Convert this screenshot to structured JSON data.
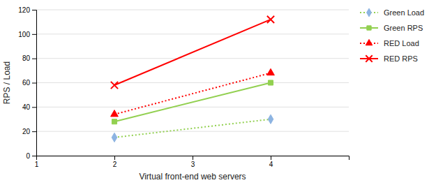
{
  "chart_data": {
    "type": "line",
    "x": [
      2,
      4
    ],
    "xlabel": "Virtual front-end web servers",
    "ylabel": "RPS / Load",
    "xlim": [
      1,
      5
    ],
    "ylim": [
      0,
      120
    ],
    "xticks": [
      1,
      2,
      3,
      4
    ],
    "yticks": [
      0,
      20,
      40,
      60,
      80,
      100,
      120
    ],
    "grid": true,
    "legend": "right",
    "series": [
      {
        "name": "Green Load",
        "color": "#92D050",
        "colors": [
          "#8DB4E2",
          "#8DB4E2"
        ],
        "marker": "diamond",
        "line_style": "dotted",
        "values": [
          15,
          30
        ]
      },
      {
        "name": "Green RPS",
        "color": "#92D050",
        "marker": "square",
        "line_style": "solid",
        "values": [
          28,
          60
        ]
      },
      {
        "name": "RED Load",
        "color": "#FF0000",
        "marker": "triangle",
        "line_style": "dotted",
        "values": [
          34,
          68
        ]
      },
      {
        "name": "RED RPS",
        "color": "#FF0000",
        "marker": "cross",
        "line_style": "solid",
        "values": [
          58,
          112
        ]
      }
    ]
  }
}
